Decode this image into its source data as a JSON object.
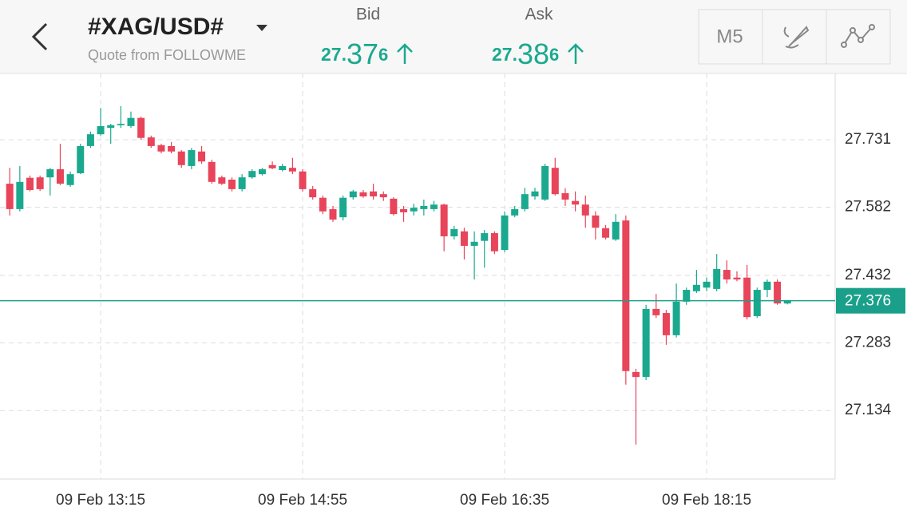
{
  "header": {
    "symbol": "#XAG/USD#",
    "source": "Quote from FOLLOWME",
    "bid_label": "Bid",
    "bid_price": [
      "27.",
      "37",
      "6"
    ],
    "ask_label": "Ask",
    "ask_price": [
      "27.",
      "38",
      "6"
    ],
    "timeframe": "M5"
  },
  "chart_data": {
    "type": "candlestick",
    "categories": [
      null,
      null,
      null,
      null,
      null,
      null,
      null,
      null,
      null,
      "09 Feb 13:15",
      null,
      null,
      null,
      null,
      null,
      null,
      null,
      null,
      null,
      null,
      null,
      null,
      null,
      null,
      null,
      null,
      null,
      null,
      null,
      "09 Feb 14:55",
      null,
      null,
      null,
      null,
      null,
      null,
      null,
      null,
      null,
      null,
      null,
      null,
      null,
      null,
      null,
      null,
      null,
      null,
      null,
      "09 Feb 16:35",
      null,
      null,
      null,
      null,
      null,
      null,
      null,
      null,
      null,
      null,
      null,
      null,
      null,
      null,
      null,
      null,
      null,
      null,
      null,
      "09 Feb 18:15",
      null,
      null,
      null,
      null,
      null,
      null,
      null,
      null
    ],
    "open": [
      27.634,
      27.578,
      27.647,
      27.648,
      27.648,
      27.666,
      27.631,
      27.657,
      27.717,
      27.743,
      27.757,
      27.763,
      27.761,
      27.779,
      27.736,
      27.719,
      27.717,
      27.705,
      27.673,
      27.705,
      27.682,
      27.648,
      27.643,
      27.622,
      27.648,
      27.655,
      27.675,
      27.664,
      27.669,
      27.661,
      27.622,
      27.603,
      27.578,
      27.56,
      27.604,
      27.615,
      27.617,
      27.611,
      27.601,
      27.578,
      27.573,
      27.578,
      27.578,
      27.588,
      27.518,
      27.529,
      27.497,
      27.508,
      27.525,
      27.488,
      27.564,
      27.578,
      27.606,
      27.599,
      27.669,
      27.613,
      27.596,
      27.588,
      27.564,
      27.536,
      27.511,
      27.553,
      27.219,
      27.208,
      27.358,
      27.349,
      27.3,
      27.374,
      27.397,
      27.405,
      27.402,
      27.444,
      27.427,
      27.427,
      27.342,
      27.4,
      27.418,
      27.37
    ],
    "high": [
      27.669,
      27.673,
      27.652,
      27.652,
      27.669,
      27.722,
      27.661,
      27.722,
      27.749,
      27.801,
      27.766,
      27.805,
      27.793,
      27.782,
      27.74,
      27.722,
      27.726,
      27.708,
      27.713,
      27.717,
      27.687,
      27.652,
      27.648,
      27.655,
      27.666,
      27.669,
      27.683,
      27.678,
      27.691,
      27.666,
      27.629,
      27.608,
      27.585,
      27.608,
      27.62,
      27.62,
      27.634,
      27.617,
      27.604,
      27.585,
      27.59,
      27.599,
      27.596,
      27.59,
      27.541,
      27.537,
      27.529,
      27.532,
      27.529,
      27.573,
      27.585,
      27.625,
      27.625,
      27.678,
      27.691,
      27.624,
      27.617,
      27.608,
      27.573,
      27.543,
      27.567,
      27.564,
      27.226,
      27.367,
      27.391,
      27.356,
      27.414,
      27.405,
      27.444,
      27.427,
      27.479,
      27.465,
      27.441,
      27.455,
      27.405,
      27.423,
      27.423,
      27.375
    ],
    "low": [
      27.564,
      27.573,
      27.617,
      27.618,
      27.608,
      27.631,
      27.627,
      27.655,
      27.713,
      27.74,
      27.722,
      27.757,
      27.757,
      27.731,
      27.713,
      27.701,
      27.701,
      27.669,
      27.666,
      27.678,
      27.634,
      27.631,
      27.617,
      27.617,
      27.645,
      27.652,
      27.666,
      27.661,
      27.655,
      27.617,
      27.599,
      27.567,
      27.55,
      27.553,
      27.599,
      27.603,
      27.599,
      27.596,
      27.564,
      27.55,
      27.564,
      27.564,
      27.573,
      27.485,
      27.511,
      27.467,
      27.423,
      27.449,
      27.479,
      27.483,
      27.56,
      27.573,
      27.599,
      27.596,
      27.608,
      27.585,
      27.573,
      27.537,
      27.511,
      27.511,
      27.508,
      27.191,
      27.059,
      27.201,
      27.338,
      27.279,
      27.295,
      27.367,
      27.393,
      27.397,
      27.397,
      27.414,
      27.419,
      27.335,
      27.338,
      27.384,
      27.367,
      27.368
    ],
    "close": [
      27.578,
      27.638,
      27.62,
      27.622,
      27.666,
      27.634,
      27.655,
      27.717,
      27.743,
      27.761,
      27.763,
      27.766,
      27.779,
      27.735,
      27.717,
      27.705,
      27.705,
      27.675,
      27.708,
      27.683,
      27.638,
      27.634,
      27.622,
      27.648,
      27.662,
      27.666,
      27.668,
      27.673,
      27.661,
      27.622,
      27.604,
      27.573,
      27.555,
      27.603,
      27.617,
      27.606,
      27.606,
      27.604,
      27.567,
      27.571,
      27.581,
      27.585,
      27.588,
      27.518,
      27.534,
      27.497,
      27.506,
      27.525,
      27.485,
      27.564,
      27.578,
      27.611,
      27.617,
      27.673,
      27.611,
      27.599,
      27.588,
      27.564,
      27.537,
      27.515,
      27.55,
      27.221,
      27.208,
      27.358,
      27.344,
      27.3,
      27.374,
      27.4,
      27.411,
      27.418,
      27.446,
      27.423,
      27.423,
      27.34,
      27.4,
      27.418,
      27.37,
      27.376
    ],
    "up_color": "#1aa98e",
    "down_color": "#e8445a",
    "current_price": 27.376,
    "price_line_color": "#1aa08a",
    "ylim": [
      26.983,
      27.877
    ],
    "yticks": [
      27.731,
      27.582,
      27.432,
      27.283,
      27.134
    ],
    "grid": true
  }
}
